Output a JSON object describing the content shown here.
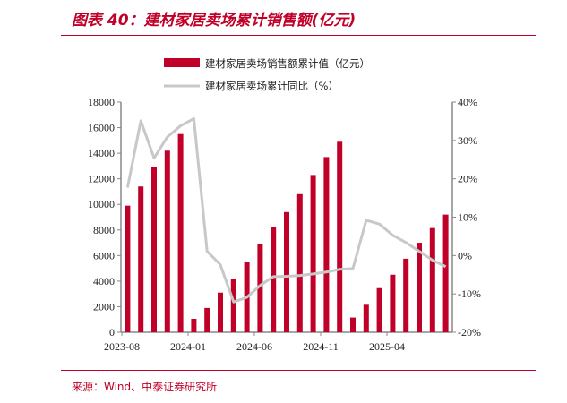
{
  "title": "图表 40：建材家居卖场累计销售额(亿元)",
  "source": "来源：Wind、中泰证券研究所",
  "colors": {
    "bar": "#c00028",
    "line": "#c8c8c8",
    "accent": "#c00028"
  },
  "chart_data": {
    "type": "bar+line",
    "title": "图表 40：建材家居卖场累计销售额(亿元)",
    "categories": [
      "2023-08",
      "2023-09",
      "2023-10",
      "2023-11",
      "2023-12",
      "2024-01",
      "2024-02",
      "2024-03",
      "2024-04",
      "2024-05",
      "2024-06",
      "2024-07",
      "2024-08",
      "2024-09",
      "2024-10",
      "2024-11",
      "2024-12",
      "2025-01",
      "2025-02",
      "2025-03",
      "2025-04",
      "2025-05",
      "2025-06",
      "2025-07",
      "2025-08"
    ],
    "x_tick_labels": [
      "2023-08",
      "2024-01",
      "2024-06",
      "2024-11",
      "2025-04"
    ],
    "series": [
      {
        "name": "建材家居卖场销售额累计值（亿元）",
        "type": "bar",
        "axis": "left",
        "values": [
          9900,
          11400,
          12900,
          14200,
          15500,
          1050,
          1900,
          3100,
          4200,
          5500,
          6900,
          8200,
          9400,
          10800,
          12300,
          13700,
          14900,
          1150,
          2150,
          3450,
          4500,
          5750,
          7000,
          8150,
          9200
        ]
      },
      {
        "name": "建材家居卖场累计同比（%）",
        "type": "line",
        "axis": "right",
        "values": [
          17.7,
          35.1,
          25.4,
          30.9,
          33.8,
          35.7,
          1.1,
          -2.4,
          -12.1,
          -10.9,
          -7.8,
          -5.5,
          -5.4,
          -5.2,
          -4.8,
          -4.3,
          -3.6,
          -3.4,
          9.2,
          8.2,
          5.3,
          3.4,
          1.1,
          -1.2,
          -2.9
        ]
      }
    ],
    "y_left": {
      "ylim": [
        0,
        18000
      ],
      "ticks": [
        "0",
        "2000",
        "4000",
        "6000",
        "8000",
        "10000",
        "12000",
        "14000",
        "16000",
        "18000"
      ]
    },
    "y_right": {
      "ylim": [
        -20,
        40
      ],
      "ticks": [
        "-20%",
        "-10%",
        "0%",
        "10%",
        "20%",
        "30%",
        "40%"
      ]
    },
    "legend_position": "top-center"
  }
}
